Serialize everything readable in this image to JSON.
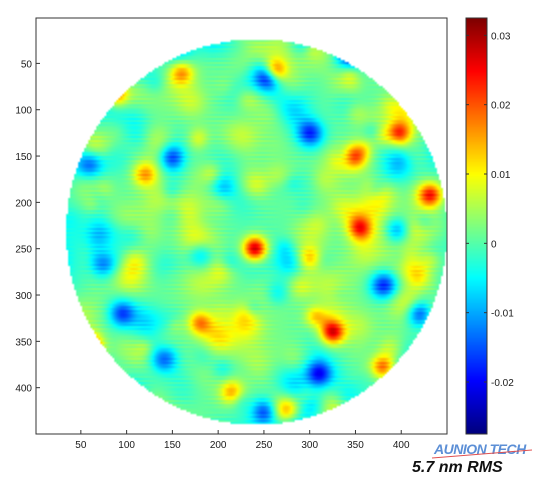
{
  "chart_data": {
    "type": "heatmap",
    "title": "",
    "xlabel": "",
    "ylabel": "",
    "xlim": [
      1,
      450
    ],
    "ylim": [
      1,
      450
    ],
    "x_ticks": [
      50,
      100,
      150,
      200,
      250,
      300,
      350,
      400
    ],
    "y_ticks": [
      50,
      100,
      150,
      200,
      250,
      300,
      350,
      400
    ],
    "x_tick_labels": [
      "50",
      "100",
      "150",
      "200",
      "250",
      "300",
      "350",
      "400"
    ],
    "y_tick_labels": [
      "50",
      "100",
      "150",
      "200",
      "250",
      "300",
      "350",
      "400"
    ],
    "colorbar": {
      "colormap": "jet",
      "range": [
        -0.0275,
        0.0325
      ],
      "ticks": [
        0.03,
        0.02,
        0.01,
        0,
        -0.01,
        -0.02
      ],
      "tick_labels": [
        "0.03",
        "0.02",
        "0.01",
        "0",
        "-0.01",
        "-0.02"
      ]
    },
    "aperture": {
      "shape": "circle",
      "center": [
        242,
        232
      ],
      "radius": 208
    },
    "features": {
      "high_spots": [
        {
          "x": 262,
          "y": 58,
          "v": 0.024
        },
        {
          "x": 88,
          "y": 83,
          "v": 0.018
        },
        {
          "x": 398,
          "y": 125,
          "v": 0.02
        },
        {
          "x": 325,
          "y": 340,
          "v": 0.026
        },
        {
          "x": 60,
          "y": 355,
          "v": 0.026
        },
        {
          "x": 432,
          "y": 192,
          "v": 0.022
        },
        {
          "x": 355,
          "y": 228,
          "v": 0.02
        },
        {
          "x": 380,
          "y": 378,
          "v": 0.02
        },
        {
          "x": 240,
          "y": 250,
          "v": 0.03
        },
        {
          "x": 120,
          "y": 170,
          "v": 0.014
        },
        {
          "x": 180,
          "y": 330,
          "v": 0.016
        },
        {
          "x": 350,
          "y": 150,
          "v": 0.016
        },
        {
          "x": 300,
          "y": 260,
          "v": 0.012
        },
        {
          "x": 160,
          "y": 60,
          "v": 0.014
        },
        {
          "x": 215,
          "y": 405,
          "v": 0.014
        },
        {
          "x": 275,
          "y": 425,
          "v": 0.012
        }
      ],
      "low_spots": [
        {
          "x": 255,
          "y": 65,
          "v": -0.022
        },
        {
          "x": 345,
          "y": 40,
          "v": -0.02
        },
        {
          "x": 150,
          "y": 150,
          "v": -0.015
        },
        {
          "x": 300,
          "y": 125,
          "v": -0.016
        },
        {
          "x": 95,
          "y": 320,
          "v": -0.016
        },
        {
          "x": 75,
          "y": 265,
          "v": -0.014
        },
        {
          "x": 310,
          "y": 385,
          "v": -0.02
        },
        {
          "x": 250,
          "y": 425,
          "v": -0.014
        },
        {
          "x": 380,
          "y": 290,
          "v": -0.016
        },
        {
          "x": 60,
          "y": 160,
          "v": -0.012
        },
        {
          "x": 205,
          "y": 185,
          "v": -0.01
        },
        {
          "x": 395,
          "y": 230,
          "v": -0.014
        },
        {
          "x": 180,
          "y": 255,
          "v": -0.01
        },
        {
          "x": 420,
          "y": 320,
          "v": -0.018
        },
        {
          "x": 140,
          "y": 370,
          "v": -0.014
        },
        {
          "x": 105,
          "y": 50,
          "v": -0.012
        }
      ],
      "edge_roll_off": "mixed, dark blue at rim with red patches at lower-left and right"
    },
    "grid": false,
    "legend": "none"
  },
  "annotations": {
    "watermark": "AUNION TECH",
    "rms_label": "5.7 nm RMS"
  },
  "colors": {
    "axes_frame": "#333333",
    "background": "#ffffff",
    "watermark": "#5c8fd6"
  }
}
